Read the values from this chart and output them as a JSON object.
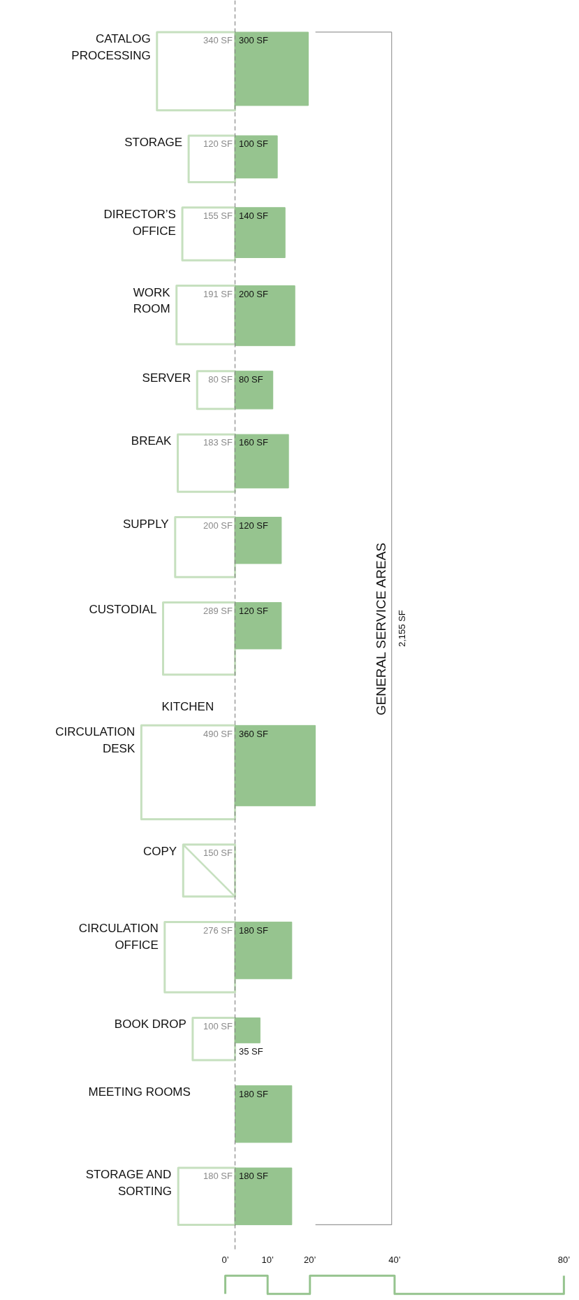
{
  "chart_data": {
    "type": "other",
    "categories": [
      "CATALOG\nPROCESSING",
      "STORAGE",
      "DIRECTOR’S\nOFFICE",
      "WORK\nROOM",
      "SERVER",
      "BREAK",
      "SUPPLY",
      "CUSTODIAL",
      "KITCHEN",
      "CIRCULATION\nDESK",
      "COPY",
      "CIRCULATION\nOFFICE",
      "BOOK DROP",
      "MEETING ROOMS",
      "STORAGE AND\nSORTING"
    ],
    "series": [
      {
        "color": "#c6e0bf",
        "values": [
          340,
          120,
          155,
          191,
          80,
          183,
          200,
          289,
          null,
          490,
          150,
          276,
          100,
          null,
          180
        ],
        "value_labels": [
          "340 SF",
          "120 SF",
          "155 SF",
          "191 SF",
          "80 SF",
          "183 SF",
          "200 SF",
          "289 SF",
          null,
          "490 SF",
          "150 SF",
          "276 SF",
          "100 SF",
          null,
          "180 SF"
        ]
      },
      {
        "color": "#96c48f",
        "values": [
          300,
          100,
          140,
          200,
          80,
          160,
          120,
          120,
          null,
          360,
          null,
          180,
          35,
          180,
          180
        ],
        "value_labels": [
          "300 SF",
          "100 SF",
          "140 SF",
          "200 SF",
          "80 SF",
          "160 SF",
          "120 SF",
          "120 SF",
          null,
          "360 SF",
          null,
          "180 SF",
          "35 SF",
          "180 SF",
          "180 SF"
        ]
      }
    ],
    "annotations": [
      "GENERAL SERVICE AREAS",
      "2,155 SF",
      "0’",
      "10’",
      "20’",
      "40’",
      "80’"
    ]
  }
}
